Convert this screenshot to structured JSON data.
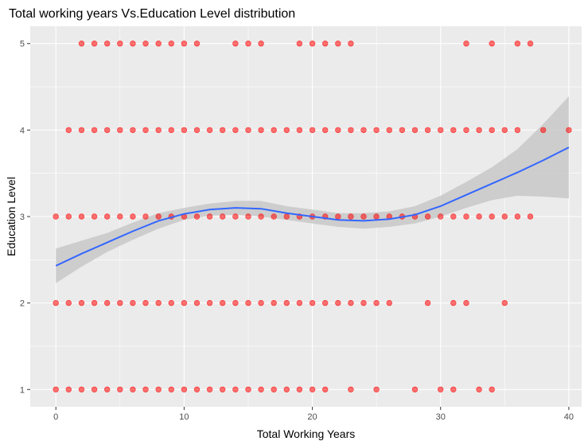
{
  "chart_data": {
    "type": "scatter",
    "title": "Total working years Vs.Education Level distribution",
    "xlabel": "Total Working Years",
    "ylabel": "Education Level",
    "xlim": [
      -2,
      41
    ],
    "ylim": [
      0.8,
      5.2
    ],
    "x_ticks": [
      0,
      10,
      20,
      30,
      40
    ],
    "y_ticks": [
      1,
      2,
      3,
      4,
      5
    ],
    "grid": true,
    "panel_background": "#ebebeb",
    "grid_color": "#ffffff",
    "point_color": "#ff0000",
    "smooth_color": "#3366ff",
    "ribbon_color": "#c8c8c8",
    "points": {
      "education_1": {
        "y": 1,
        "x": [
          0,
          1,
          2,
          3,
          4,
          5,
          6,
          7,
          8,
          9,
          10,
          11,
          12,
          13,
          14,
          15,
          16,
          17,
          18,
          19,
          20,
          21,
          23,
          25,
          28,
          30,
          31,
          33,
          34
        ]
      },
      "education_2": {
        "y": 2,
        "x": [
          0,
          1,
          2,
          3,
          4,
          5,
          6,
          7,
          8,
          9,
          10,
          11,
          12,
          13,
          14,
          15,
          16,
          17,
          18,
          19,
          20,
          21,
          22,
          23,
          24,
          25,
          26,
          29,
          31,
          32,
          35
        ]
      },
      "education_3": {
        "y": 3,
        "x": [
          0,
          1,
          2,
          3,
          4,
          5,
          6,
          7,
          8,
          9,
          10,
          11,
          12,
          13,
          14,
          15,
          16,
          17,
          18,
          19,
          20,
          21,
          22,
          23,
          24,
          25,
          26,
          27,
          28,
          29,
          30,
          31,
          32,
          33,
          34,
          35,
          36,
          37
        ]
      },
      "education_4": {
        "y": 4,
        "x": [
          1,
          2,
          3,
          4,
          5,
          6,
          7,
          8,
          9,
          10,
          11,
          12,
          13,
          14,
          15,
          16,
          17,
          18,
          19,
          20,
          21,
          22,
          23,
          24,
          25,
          26,
          27,
          28,
          29,
          30,
          31,
          32,
          33,
          34,
          35,
          36,
          38,
          40
        ]
      },
      "education_5": {
        "y": 5,
        "x": [
          2,
          3,
          4,
          5,
          6,
          7,
          8,
          9,
          10,
          11,
          14,
          15,
          16,
          19,
          20,
          21,
          22,
          23,
          32,
          34,
          36,
          37
        ]
      }
    },
    "smooth": {
      "x": [
        0,
        2,
        4,
        6,
        8,
        10,
        12,
        14,
        16,
        18,
        20,
        22,
        24,
        26,
        28,
        30,
        32,
        34,
        36,
        38,
        40
      ],
      "y": [
        2.43,
        2.57,
        2.7,
        2.83,
        2.95,
        3.03,
        3.08,
        3.1,
        3.09,
        3.04,
        3.0,
        2.96,
        2.95,
        2.97,
        3.02,
        3.12,
        3.25,
        3.38,
        3.51,
        3.65,
        3.8
      ],
      "lo": [
        2.23,
        2.42,
        2.59,
        2.73,
        2.86,
        2.96,
        3.01,
        3.02,
        3.0,
        2.96,
        2.92,
        2.88,
        2.86,
        2.88,
        2.92,
        3.0,
        3.1,
        3.19,
        3.24,
        3.23,
        3.21
      ],
      "hi": [
        2.63,
        2.72,
        2.81,
        2.93,
        3.04,
        3.1,
        3.15,
        3.18,
        3.18,
        3.12,
        3.08,
        3.04,
        3.04,
        3.06,
        3.12,
        3.24,
        3.4,
        3.57,
        3.78,
        4.07,
        4.39
      ]
    }
  }
}
